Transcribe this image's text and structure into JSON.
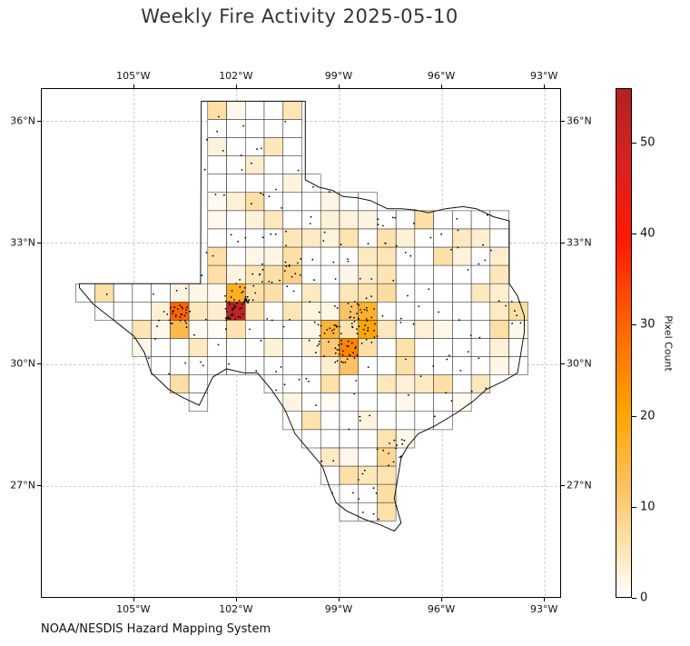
{
  "title": "Weekly Fire Activity 2025-05-10",
  "source": "NOAA/NESDIS Hazard Mapping System",
  "map": {
    "region": "Texas",
    "lon_range": [
      -108.0,
      -92.5
    ],
    "lat_range": [
      24.2,
      36.8
    ],
    "lon_ticks": [
      "105°W",
      "102°W",
      "99°W",
      "96°W",
      "93°W"
    ],
    "lat_ticks": [
      "36°N",
      "33°N",
      "30°N",
      "27°N"
    ],
    "gridlines": true
  },
  "colorbar": {
    "label": "Pixel Count",
    "min": 0,
    "max": 56,
    "ticks": [
      "0",
      "10",
      "20",
      "30",
      "40",
      "50"
    ],
    "colors": [
      "#ffffff",
      "#fde3b0",
      "#fdc060",
      "#ffa500",
      "#ff6a00",
      "#ff1a00",
      "#b22222"
    ]
  },
  "chart_data": {
    "type": "heatmap",
    "title": "Weekly Fire Activity 2025-05-10",
    "value_label": "Pixel Count",
    "range": [
      0,
      56
    ],
    "hotspots": [
      {
        "lon": -102.0,
        "lat": 31.4,
        "count": 56
      },
      {
        "lon": -103.7,
        "lat": 31.2,
        "count": 34
      },
      {
        "lon": -98.8,
        "lat": 30.3,
        "count": 30
      },
      {
        "lon": -98.3,
        "lat": 30.8,
        "count": 24
      },
      {
        "lon": -98.3,
        "lat": 31.4,
        "count": 20
      },
      {
        "lon": -99.3,
        "lat": 30.7,
        "count": 20
      },
      {
        "lon": -101.8,
        "lat": 31.8,
        "count": 15
      },
      {
        "lon": -98.8,
        "lat": 31.2,
        "count": 14
      },
      {
        "lon": -100.4,
        "lat": 32.4,
        "count": 12
      },
      {
        "lon": -97.5,
        "lat": 27.9,
        "count": 12
      },
      {
        "lon": -94.0,
        "lat": 31.3,
        "count": 10
      },
      {
        "lon": -101.2,
        "lat": 32.3,
        "count": 10
      }
    ]
  }
}
